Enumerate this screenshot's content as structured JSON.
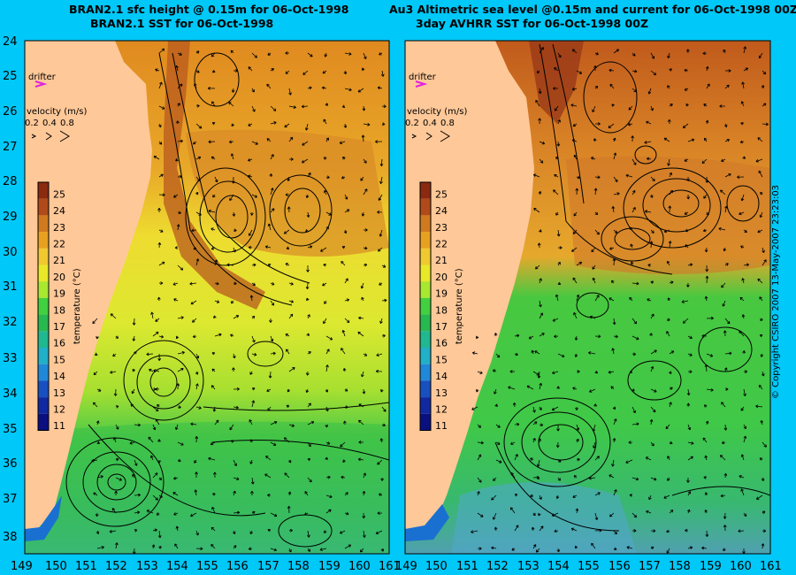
{
  "titles": {
    "left_line1": "BRAN2.1 sfc height @ 0.15m for 06-Oct-1998",
    "left_line2": "BRAN2.1 SST for 06-Oct-1998",
    "right_line1": "Au3 Altimetric sea level  @0.15m and current for 06-Oct-1998 00Z",
    "right_line2": "3day AVHRR SST for 06-Oct-1998 00Z"
  },
  "panels": [
    {
      "id": "left",
      "source": "BRAN2.1 model"
    },
    {
      "id": "right",
      "source": "Au3 / AVHRR observations"
    }
  ],
  "axes": {
    "x_ticks": [
      "149",
      "150",
      "151",
      "152",
      "153",
      "154",
      "155",
      "156",
      "157",
      "158",
      "159",
      "160",
      "161"
    ],
    "y_ticks": [
      "24",
      "25",
      "26",
      "27",
      "28",
      "29",
      "30",
      "31",
      "32",
      "33",
      "34",
      "35",
      "36",
      "37",
      "38"
    ]
  },
  "legend": {
    "drifter_label": "drifter",
    "velocity_label": "velocity (m/s)",
    "velocity_scale": [
      "0.2",
      "0.4",
      "0.8"
    ],
    "colorbar_title": "temperature (°C)",
    "colorbar_ticks": [
      "25",
      "24",
      "23",
      "22",
      "21",
      "20",
      "19",
      "18",
      "17",
      "16",
      "15",
      "14",
      "13",
      "12",
      "11"
    ],
    "colorbar_colors": [
      "#8a2a10",
      "#b04a1a",
      "#d07a20",
      "#e8a020",
      "#f0c830",
      "#e8e828",
      "#a8e830",
      "#40d040",
      "#28b850",
      "#20b890",
      "#20b0c8",
      "#2088d8",
      "#1850c0",
      "#1028a0",
      "#0a1080"
    ]
  },
  "copyright": "© Copyright CSIRO 2007   13-May-2007 23:23:03",
  "colors": {
    "background": "#00c8f8",
    "land": "#ffc898",
    "contour": "#000000"
  }
}
